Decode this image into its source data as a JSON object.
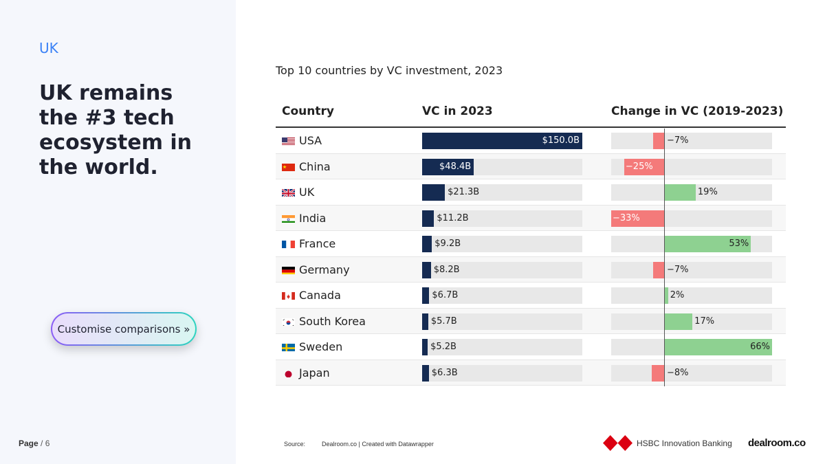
{
  "sidebar": {
    "section_tag": "UK",
    "headline": "UK remains the #3 tech ecosystem in the world.",
    "cta_label": "Customise comparisons »",
    "page_label": "Page",
    "page_rest": " / 6"
  },
  "footer": {
    "source_label": "Source:",
    "source_text": "Dealroom.co | Created with Datawrapper",
    "hsbc_name": "HSBC Innovation Banking",
    "dealroom_logo": "dealroom.co"
  },
  "chart_data": {
    "type": "table",
    "title": "Top 10 countries by VC investment, 2023",
    "columns": [
      "Country",
      "VC in 2023",
      "Change in VC (2019-2023)"
    ],
    "vc_max": 150.0,
    "change_range": [
      -33,
      66
    ],
    "colors": {
      "vc": "#152b52",
      "negative": "#f47a7a",
      "positive": "#8ed191",
      "track": "#e8e8e8"
    },
    "rows": [
      {
        "country": "USA",
        "flag": "us-flag-icon",
        "vc": 150.0,
        "vc_label": "$150.0B",
        "change": -7,
        "change_label": "−7%"
      },
      {
        "country": "China",
        "flag": "cn-flag-icon",
        "vc": 48.4,
        "vc_label": "$48.4B",
        "change": -25,
        "change_label": "−25%"
      },
      {
        "country": "UK",
        "flag": "uk-flag-icon",
        "vc": 21.3,
        "vc_label": "$21.3B",
        "change": 19,
        "change_label": "19%"
      },
      {
        "country": "India",
        "flag": "in-flag-icon",
        "vc": 11.2,
        "vc_label": "$11.2B",
        "change": -33,
        "change_label": "−33%"
      },
      {
        "country": "France",
        "flag": "fr-flag-icon",
        "vc": 9.2,
        "vc_label": "$9.2B",
        "change": 53,
        "change_label": "53%"
      },
      {
        "country": "Germany",
        "flag": "de-flag-icon",
        "vc": 8.2,
        "vc_label": "$8.2B",
        "change": -7,
        "change_label": "−7%"
      },
      {
        "country": "Canada",
        "flag": "ca-flag-icon",
        "vc": 6.7,
        "vc_label": "$6.7B",
        "change": 2,
        "change_label": "2%"
      },
      {
        "country": "South Korea",
        "flag": "kr-flag-icon",
        "vc": 5.7,
        "vc_label": "$5.7B",
        "change": 17,
        "change_label": "17%"
      },
      {
        "country": "Sweden",
        "flag": "se-flag-icon",
        "vc": 5.2,
        "vc_label": "$5.2B",
        "change": 66,
        "change_label": "66%"
      },
      {
        "country": "Japan",
        "flag": "jp-flag-icon",
        "vc": 6.3,
        "vc_label": "$6.3B",
        "change": -8,
        "change_label": "−8%"
      }
    ]
  }
}
